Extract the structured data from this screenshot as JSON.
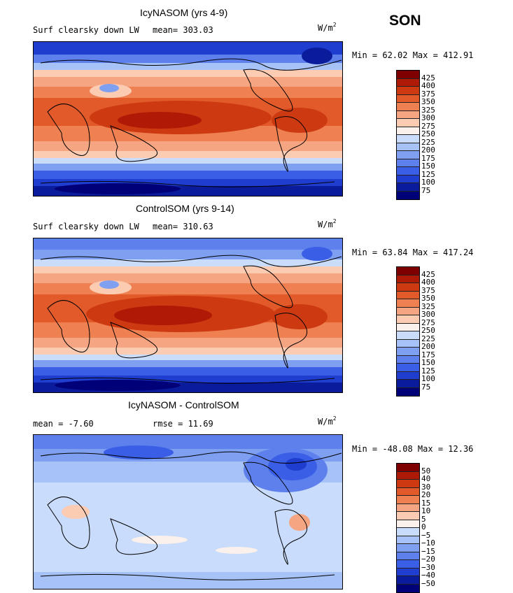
{
  "season": "SON",
  "panels": [
    {
      "title": "IcyNASOM (yrs 4-9)",
      "variable": "Surf clearsky down LW",
      "mean_label": "mean= 303.03",
      "units_base": "W/m",
      "units_exp": "2",
      "minmax": "Min =  62.02 Max = 412.91",
      "colorbar": {
        "labels": [
          "425",
          "400",
          "375",
          "350",
          "325",
          "300",
          "275",
          "250",
          "225",
          "200",
          "175",
          "150",
          "125",
          "100",
          "75"
        ],
        "colors": [
          "#7f0000",
          "#ae1a06",
          "#cd3a12",
          "#e25a2a",
          "#ef8052",
          "#f6a582",
          "#fbcbb2",
          "#fbf1ec",
          "#c9dcfb",
          "#a7c2f6",
          "#7f9ff0",
          "#5d80ec",
          "#3a5ee6",
          "#1f3dcf",
          "#0a1b9c",
          "#000078"
        ]
      }
    },
    {
      "title": "ControlSOM (yrs 9-14)",
      "variable": "Surf clearsky down LW",
      "mean_label": "mean= 310.63",
      "units_base": "W/m",
      "units_exp": "2",
      "minmax": "Min =  63.84 Max = 417.24",
      "colorbar": {
        "labels": [
          "425",
          "400",
          "375",
          "350",
          "325",
          "300",
          "275",
          "250",
          "225",
          "200",
          "175",
          "150",
          "125",
          "100",
          "75"
        ],
        "colors": [
          "#7f0000",
          "#ae1a06",
          "#cd3a12",
          "#e25a2a",
          "#ef8052",
          "#f6a582",
          "#fbcbb2",
          "#fbf1ec",
          "#c9dcfb",
          "#a7c2f6",
          "#7f9ff0",
          "#5d80ec",
          "#3a5ee6",
          "#1f3dcf",
          "#0a1b9c",
          "#000078"
        ]
      }
    },
    {
      "title": "IcyNASOM - ControlSOM",
      "mean_label": "mean =   -7.60",
      "rmse_label": "rmse =   11.69",
      "units_base": "W/m",
      "units_exp": "2",
      "minmax": "Min = -48.08 Max =  12.36",
      "colorbar": {
        "labels": [
          "50",
          "40",
          "30",
          "20",
          "15",
          "10",
          "5",
          "0",
          "−5",
          "−10",
          "−15",
          "−20",
          "−30",
          "−40",
          "−50"
        ],
        "colors": [
          "#7f0000",
          "#ae1a06",
          "#cd3a12",
          "#e25a2a",
          "#ef8052",
          "#f6a582",
          "#fbcbb2",
          "#fbf1ec",
          "#c9dcfb",
          "#a7c2f6",
          "#7f9ff0",
          "#5d80ec",
          "#3a5ee6",
          "#1f3dcf",
          "#0a1b9c",
          "#000078"
        ]
      }
    }
  ]
}
